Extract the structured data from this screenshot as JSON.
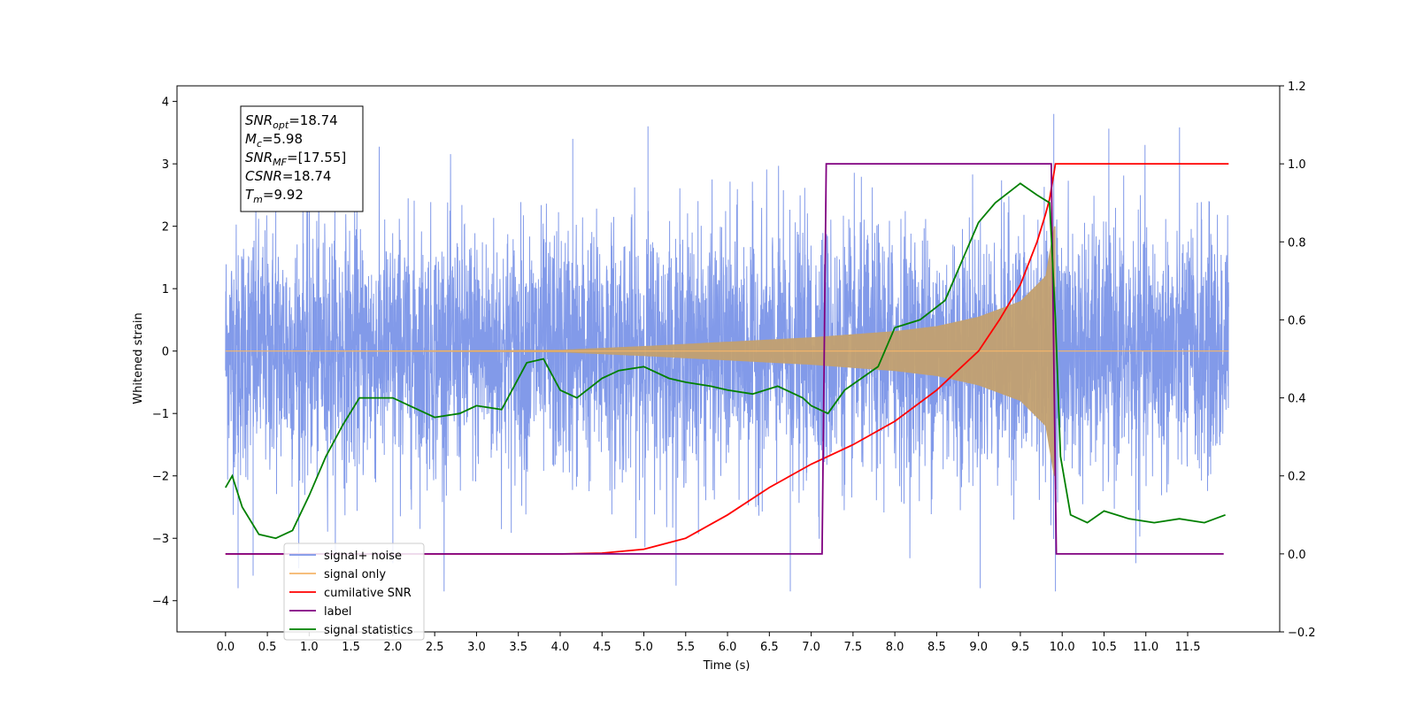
{
  "chart_data": {
    "type": "line",
    "title": "",
    "xlabel": "Time (s)",
    "ylabel": "Whitened strain",
    "xlim": [
      -0.58,
      12.6
    ],
    "ylim": [
      -4.5,
      4.25
    ],
    "y2lim": [
      -0.2,
      1.2
    ],
    "x_ticks": [
      0.0,
      0.5,
      1.0,
      1.5,
      2.0,
      2.5,
      3.0,
      3.5,
      4.0,
      4.5,
      5.0,
      5.5,
      6.0,
      6.5,
      7.0,
      7.5,
      8.0,
      8.5,
      9.0,
      9.5,
      10.0,
      10.5,
      11.0,
      11.5
    ],
    "x_tick_labels": [
      "0.0",
      "0.5",
      "1.0",
      "1.5",
      "2.0",
      "2.5",
      "3.0",
      "3.5",
      "4.0",
      "4.5",
      "5.0",
      "5.5",
      "6.0",
      "6.5",
      "7.0",
      "7.5",
      "8.0",
      "8.5",
      "9.0",
      "9.5",
      "10.0",
      "10.5",
      "11.0",
      "11.5"
    ],
    "y_ticks": [
      -4,
      -3,
      -2,
      -1,
      0,
      1,
      2,
      3,
      4
    ],
    "y_tick_labels": [
      "−4",
      "−3",
      "−2",
      "−1",
      "0",
      "1",
      "2",
      "3",
      "4"
    ],
    "y2_ticks": [
      -0.2,
      0.0,
      0.2,
      0.4,
      0.6,
      0.8,
      1.0,
      1.2
    ],
    "y2_tick_labels": [
      "−0.2",
      "0.0",
      "0.2",
      "0.4",
      "0.6",
      "0.8",
      "1.0",
      "1.2"
    ],
    "grid": false,
    "legend_position": "lower-left",
    "series": [
      {
        "name": "signal+ noise",
        "axis": "left",
        "color": "#7b95e8",
        "sample_rate_hz": 400,
        "x_range": [
          0.0,
          11.99
        ],
        "noise_envelope": [
          -3.85,
          3.85
        ],
        "noise_spikes": [
          [
            0.15,
            -3.8
          ],
          [
            0.33,
            -3.6
          ],
          [
            0.6,
            3.3
          ],
          [
            1.0,
            3.3
          ],
          [
            2.0,
            -3.4
          ],
          [
            4.15,
            3.4
          ],
          [
            5.05,
            3.6
          ],
          [
            6.75,
            -3.85
          ],
          [
            9.02,
            -3.8
          ],
          [
            9.9,
            3.8
          ],
          [
            9.92,
            -3.85
          ],
          [
            10.88,
            -3.4
          ]
        ]
      },
      {
        "name": "signal only",
        "axis": "left",
        "color": "#f5b56a",
        "chirp_envelope": {
          "x": [
            0.0,
            4.0,
            5.0,
            6.0,
            7.0,
            8.0,
            8.5,
            9.0,
            9.5,
            9.8,
            9.9
          ],
          "amp": [
            0.0,
            0.02,
            0.08,
            0.15,
            0.22,
            0.32,
            0.4,
            0.55,
            0.8,
            1.2,
            2.0
          ]
        },
        "x_range": [
          0.0,
          11.99
        ],
        "merger_time": 9.92
      },
      {
        "name": "cumilative SNR",
        "axis": "right",
        "color": "#ff0000",
        "x": [
          0.0,
          3.5,
          4.0,
          4.5,
          5.0,
          5.5,
          6.0,
          6.5,
          7.0,
          7.5,
          8.0,
          8.5,
          9.0,
          9.25,
          9.5,
          9.7,
          9.8,
          9.85,
          9.92,
          9.94,
          11.99
        ],
        "values": [
          0.0,
          0.0,
          0.0,
          0.002,
          0.012,
          0.04,
          0.1,
          0.17,
          0.23,
          0.28,
          0.34,
          0.42,
          0.52,
          0.6,
          0.69,
          0.8,
          0.87,
          0.91,
          1.0,
          1.0,
          1.0
        ]
      },
      {
        "name": "label",
        "axis": "right",
        "color": "#800080",
        "x": [
          0.0,
          7.13,
          7.18,
          9.87,
          9.93,
          11.93
        ],
        "values": [
          0.0,
          0.0,
          1.0,
          1.0,
          0.0,
          0.0
        ]
      },
      {
        "name": "signal statistics",
        "axis": "right",
        "color": "#008000",
        "x": [
          0.0,
          0.08,
          0.2,
          0.4,
          0.6,
          0.8,
          1.0,
          1.2,
          1.4,
          1.6,
          1.8,
          2.0,
          2.2,
          2.5,
          2.8,
          3.0,
          3.3,
          3.6,
          3.8,
          4.0,
          4.2,
          4.5,
          4.7,
          5.0,
          5.3,
          5.5,
          5.8,
          6.0,
          6.3,
          6.6,
          6.9,
          7.0,
          7.2,
          7.4,
          7.6,
          7.8,
          8.0,
          8.3,
          8.6,
          8.9,
          9.0,
          9.2,
          9.5,
          9.7,
          9.85,
          9.92,
          9.98,
          10.1,
          10.3,
          10.5,
          10.8,
          11.1,
          11.4,
          11.7,
          11.95
        ],
        "values": [
          0.17,
          0.2,
          0.12,
          0.05,
          0.04,
          0.06,
          0.15,
          0.25,
          0.33,
          0.4,
          0.4,
          0.4,
          0.38,
          0.35,
          0.36,
          0.38,
          0.37,
          0.49,
          0.5,
          0.42,
          0.4,
          0.45,
          0.47,
          0.48,
          0.45,
          0.44,
          0.43,
          0.42,
          0.41,
          0.43,
          0.4,
          0.38,
          0.36,
          0.42,
          0.45,
          0.48,
          0.58,
          0.6,
          0.65,
          0.8,
          0.85,
          0.9,
          0.95,
          0.92,
          0.9,
          0.6,
          0.25,
          0.1,
          0.08,
          0.11,
          0.09,
          0.08,
          0.09,
          0.08,
          0.1
        ]
      }
    ],
    "legend": [
      {
        "label": "signal+ noise",
        "color": "#7b95e8"
      },
      {
        "label": "signal only",
        "color": "#f5b56a"
      },
      {
        "label": "cumilative SNR",
        "color": "#ff0000"
      },
      {
        "label": "label",
        "color": "#800080"
      },
      {
        "label": "signal statistics",
        "color": "#008000"
      }
    ],
    "annotation": {
      "lines": [
        {
          "main": "SNR",
          "sub": "opt",
          "value": "=18.74"
        },
        {
          "main": "M",
          "sub": "c",
          "value": "=5.98"
        },
        {
          "main": "SNR",
          "sub": "MF",
          "value": "=[17.55]"
        },
        {
          "main": "CSNR",
          "sub": "",
          "value": "=18.74"
        },
        {
          "main": "T",
          "sub": "m",
          "value": "=9.92"
        }
      ]
    }
  }
}
